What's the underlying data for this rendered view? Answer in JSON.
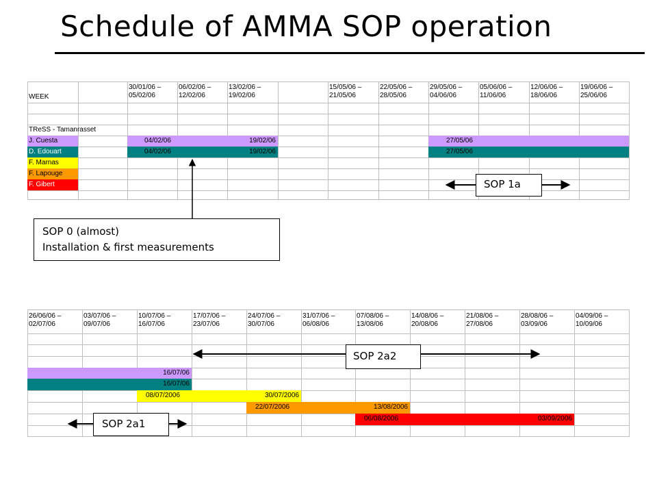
{
  "title": "Schedule of AMMA SOP operation",
  "colors": {
    "purple": "#cc99ff",
    "teal": "#008080",
    "yellow": "#ffff00",
    "orange": "#ff9900",
    "red": "#ff0000",
    "gridline": "#bdbdbd"
  },
  "table1": {
    "week_label": "WEEK",
    "week_headers": [
      "30/01/06 –\n05/02/06",
      "06/02/06 –\n12/02/06",
      "13/02/06 –\n19/02/06",
      "",
      "15/05/06 –\n21/05/06",
      "22/05/06 –\n28/05/06",
      "29/05/06 –\n04/06/06",
      "05/06/06 –\n11/06/06",
      "12/06/06 –\n18/06/06",
      "19/06/06 –\n25/06/06"
    ],
    "station": "TReSS - Tamanrasset",
    "people": [
      {
        "name": "J. Cuesta",
        "color": "purple"
      },
      {
        "name": "D. Edouart",
        "color": "teal"
      },
      {
        "name": "F. Marnas",
        "color": "yellow"
      },
      {
        "name": "F. Lapouge",
        "color": "orange"
      },
      {
        "name": "F. Gibert",
        "color": "red"
      }
    ],
    "bars": [
      {
        "person": "J. Cuesta",
        "start": "04/02/06",
        "end": "19/02/06",
        "color": "purple"
      },
      {
        "person": "J. Cuesta",
        "start": "27/05/06",
        "end": "",
        "color": "purple"
      },
      {
        "person": "D. Edouart",
        "start": "04/02/06",
        "end": "19/02/06",
        "color": "teal"
      },
      {
        "person": "D. Edouart",
        "start": "27/05/06",
        "end": "",
        "color": "teal"
      }
    ]
  },
  "table2": {
    "week_headers": [
      "26/06/06 –\n02/07/06",
      "03/07/06 –\n09/07/06",
      "10/07/06 –\n16/07/06",
      "17/07/06 –\n23/07/06",
      "24/07/06 –\n30/07/06",
      "31/07/06 –\n06/08/06",
      "07/08/06 –\n13/08/06",
      "14/08/06 –\n20/08/06",
      "21/08/06 –\n27/08/06",
      "28/08/06 –\n03/09/06",
      "04/09/06 –\n10/09/06"
    ],
    "bars": [
      {
        "start": "",
        "end": "16/07/06",
        "color": "purple"
      },
      {
        "start": "",
        "end": "16/07/06",
        "color": "teal"
      },
      {
        "start": "08/07/2006",
        "end": "30/07/2006",
        "color": "yellow"
      },
      {
        "start": "22/07/2006",
        "end": "13/08/2006",
        "color": "orange"
      },
      {
        "start": "06/08/2006",
        "end": "03/09/2006",
        "color": "red"
      }
    ]
  },
  "annotations": {
    "sop0_line1": "SOP 0 (almost)",
    "sop0_line2": "Installation & first measurements",
    "sop1a": "SOP 1a",
    "sop2a1": "SOP 2a1",
    "sop2a2": "SOP 2a2"
  }
}
